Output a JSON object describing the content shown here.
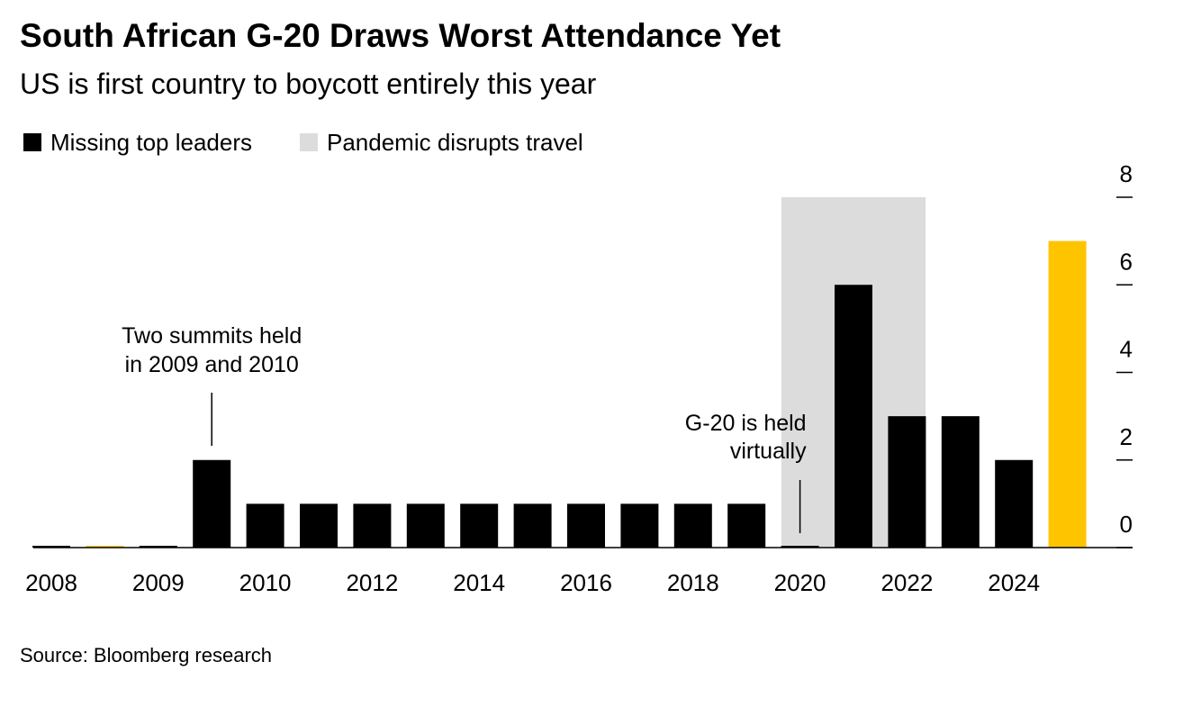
{
  "chart_data": {
    "type": "bar",
    "title": "South African G-20 Draws Worst Attendance Yet",
    "subtitle": "US is first country to boycott entirely this year",
    "source": "Source: Bloomberg research",
    "categories": [
      "2008",
      null,
      "2009",
      null,
      "2010",
      null,
      "2012",
      null,
      "2014",
      null,
      "2016",
      null,
      "2018",
      null,
      "2020",
      null,
      "2022",
      null,
      "2024",
      null
    ],
    "series": [
      {
        "name": "Missing top leaders",
        "color": "#000000",
        "values": [
          0,
          0,
          0,
          2,
          1,
          1,
          1,
          1,
          1,
          1,
          1,
          1,
          1,
          1,
          0,
          6,
          3,
          3,
          2,
          7
        ],
        "colors": [
          "#000000",
          "#ffc400",
          "#000000",
          "#000000",
          "#000000",
          "#000000",
          "#000000",
          "#000000",
          "#000000",
          "#000000",
          "#000000",
          "#000000",
          "#000000",
          "#000000",
          "#000000",
          "#000000",
          "#000000",
          "#000000",
          "#000000",
          "#ffc400"
        ]
      }
    ],
    "shading": {
      "name": "Pandemic disrupts travel",
      "color": "#dcdcdc",
      "from": 14,
      "to": 16
    },
    "annotations": [
      {
        "lines": [
          "Two summits held",
          "in 2009 and 2010"
        ],
        "index": 3
      },
      {
        "lines": [
          "G-20 is held",
          "virtually"
        ],
        "index": 14
      }
    ],
    "ylim": [
      0,
      8
    ],
    "yticks": [
      0,
      2,
      4,
      6,
      8
    ],
    "y_axis_side": "right"
  }
}
